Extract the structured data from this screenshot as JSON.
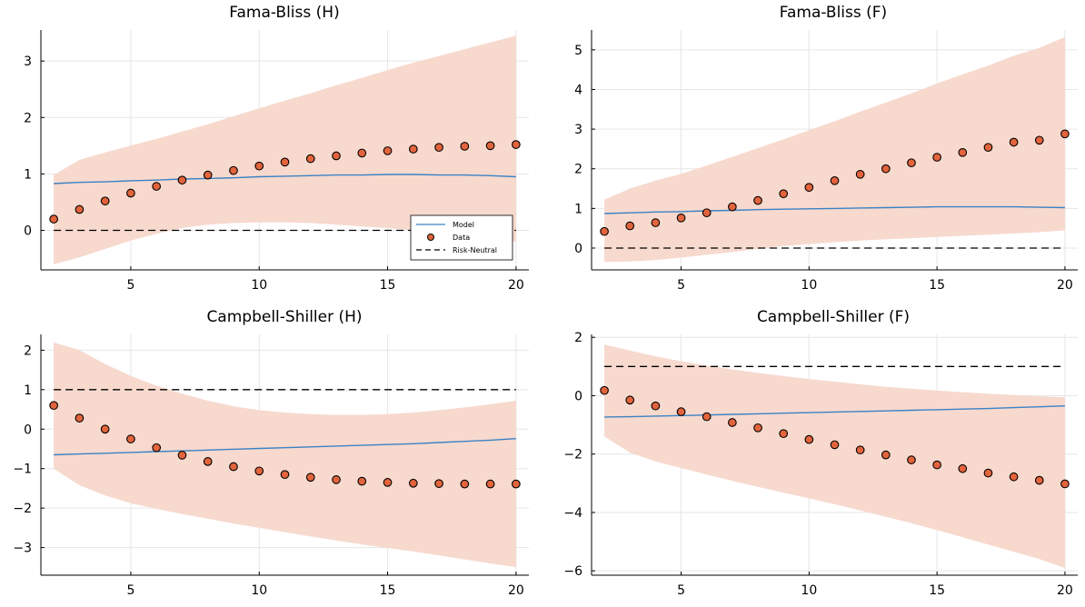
{
  "colors": {
    "band": "#f7d9ce",
    "model": "#3b82c4",
    "data_fill": "#e2643c",
    "data_edge": "#000000",
    "risk_neutral": "#000000",
    "grid": "#e6e6e6"
  },
  "legend": {
    "model_label": "Model",
    "data_label": "Data",
    "risk_neutral_label": "Risk-Neutral"
  },
  "chart_data": [
    {
      "type": "scatter",
      "title": "Fama-Bliss (H)",
      "xlabel": "",
      "ylabel": "",
      "xlim": [
        1.5,
        20.5
      ],
      "ylim": [
        -0.7,
        3.55
      ],
      "xticks": [
        5,
        10,
        15,
        20
      ],
      "yticks": [
        0,
        1,
        2,
        3
      ],
      "grid": true,
      "legend": "bottom-right",
      "x": [
        2,
        3,
        4,
        5,
        6,
        7,
        8,
        9,
        10,
        11,
        12,
        13,
        14,
        15,
        16,
        17,
        18,
        19,
        20
      ],
      "data": [
        0.2,
        0.37,
        0.52,
        0.66,
        0.78,
        0.89,
        0.98,
        1.06,
        1.14,
        1.21,
        1.27,
        1.32,
        1.37,
        1.41,
        1.44,
        1.47,
        1.49,
        1.5,
        1.52
      ],
      "model": [
        0.83,
        0.85,
        0.86,
        0.88,
        0.89,
        0.91,
        0.92,
        0.93,
        0.95,
        0.96,
        0.97,
        0.98,
        0.98,
        0.99,
        0.99,
        0.98,
        0.98,
        0.97,
        0.95
      ],
      "band_upper": [
        0.98,
        1.25,
        1.38,
        1.5,
        1.62,
        1.75,
        1.88,
        2.02,
        2.16,
        2.3,
        2.43,
        2.57,
        2.7,
        2.84,
        2.97,
        3.09,
        3.21,
        3.33,
        3.45
      ],
      "band_lower": [
        -0.6,
        -0.48,
        -0.33,
        -0.18,
        -0.06,
        0.04,
        0.1,
        0.13,
        0.14,
        0.14,
        0.13,
        0.1,
        0.07,
        0.04,
        0.0,
        -0.05,
        -0.1,
        -0.15,
        -0.2
      ],
      "risk_neutral": 0
    },
    {
      "type": "scatter",
      "title": "Fama-Bliss (F)",
      "xlabel": "",
      "ylabel": "",
      "xlim": [
        1.5,
        20.5
      ],
      "ylim": [
        -0.55,
        5.5
      ],
      "xticks": [
        5,
        10,
        15,
        20
      ],
      "yticks": [
        0,
        1,
        2,
        3,
        4,
        5
      ],
      "grid": true,
      "x": [
        2,
        3,
        4,
        5,
        6,
        7,
        8,
        9,
        10,
        11,
        12,
        13,
        14,
        15,
        16,
        17,
        18,
        19,
        20
      ],
      "data": [
        0.42,
        0.56,
        0.64,
        0.76,
        0.89,
        1.04,
        1.2,
        1.37,
        1.53,
        1.7,
        1.86,
        2.0,
        2.15,
        2.29,
        2.41,
        2.54,
        2.67,
        2.72,
        2.88
      ],
      "model": [
        0.87,
        0.89,
        0.91,
        0.92,
        0.94,
        0.95,
        0.97,
        0.98,
        0.99,
        1.0,
        1.01,
        1.02,
        1.03,
        1.04,
        1.04,
        1.04,
        1.04,
        1.03,
        1.02
      ],
      "band_upper": [
        1.22,
        1.5,
        1.7,
        1.87,
        2.08,
        2.3,
        2.52,
        2.74,
        2.97,
        3.2,
        3.44,
        3.67,
        3.9,
        4.15,
        4.38,
        4.6,
        4.85,
        5.05,
        5.32
      ],
      "band_lower": [
        -0.35,
        -0.34,
        -0.3,
        -0.24,
        -0.17,
        -0.1,
        -0.02,
        0.05,
        0.1,
        0.15,
        0.19,
        0.22,
        0.25,
        0.28,
        0.31,
        0.34,
        0.37,
        0.4,
        0.45
      ],
      "risk_neutral": 0
    },
    {
      "type": "scatter",
      "title": "Campbell-Shiller (H)",
      "xlabel": "",
      "ylabel": "",
      "xlim": [
        1.5,
        20.5
      ],
      "ylim": [
        -3.7,
        2.4
      ],
      "xticks": [
        5,
        10,
        15,
        20
      ],
      "yticks": [
        -3,
        -2,
        -1,
        0,
        1,
        2
      ],
      "grid": true,
      "x": [
        2,
        3,
        4,
        5,
        6,
        7,
        8,
        9,
        10,
        11,
        12,
        13,
        14,
        15,
        16,
        17,
        18,
        19,
        20
      ],
      "data": [
        0.6,
        0.28,
        0.0,
        -0.25,
        -0.47,
        -0.66,
        -0.82,
        -0.95,
        -1.06,
        -1.15,
        -1.22,
        -1.28,
        -1.32,
        -1.35,
        -1.37,
        -1.38,
        -1.39,
        -1.39,
        -1.39
      ],
      "model": [
        -0.65,
        -0.63,
        -0.61,
        -0.59,
        -0.57,
        -0.55,
        -0.53,
        -0.51,
        -0.49,
        -0.47,
        -0.45,
        -0.43,
        -0.41,
        -0.39,
        -0.37,
        -0.34,
        -0.31,
        -0.28,
        -0.24
      ],
      "band_upper": [
        2.2,
        2.0,
        1.65,
        1.35,
        1.1,
        0.9,
        0.72,
        0.58,
        0.48,
        0.42,
        0.38,
        0.36,
        0.36,
        0.38,
        0.42,
        0.48,
        0.55,
        0.63,
        0.72
      ],
      "band_lower": [
        -1.0,
        -1.42,
        -1.68,
        -1.88,
        -2.02,
        -2.15,
        -2.27,
        -2.39,
        -2.5,
        -2.61,
        -2.72,
        -2.82,
        -2.92,
        -3.01,
        -3.1,
        -3.2,
        -3.3,
        -3.4,
        -3.5
      ],
      "risk_neutral": 1
    },
    {
      "type": "scatter",
      "title": "Campbell-Shiller (F)",
      "xlabel": "",
      "ylabel": "",
      "xlim": [
        1.5,
        20.5
      ],
      "ylim": [
        -6.15,
        2.1
      ],
      "xticks": [
        5,
        10,
        15,
        20
      ],
      "yticks": [
        -6,
        -4,
        -2,
        0,
        2
      ],
      "grid": true,
      "x": [
        2,
        3,
        4,
        5,
        6,
        7,
        8,
        9,
        10,
        11,
        12,
        13,
        14,
        15,
        16,
        17,
        18,
        19,
        20
      ],
      "data": [
        0.18,
        -0.15,
        -0.35,
        -0.55,
        -0.72,
        -0.92,
        -1.1,
        -1.3,
        -1.5,
        -1.68,
        -1.86,
        -2.03,
        -2.2,
        -2.37,
        -2.5,
        -2.65,
        -2.78,
        -2.9,
        -3.02
      ],
      "model": [
        -0.73,
        -0.72,
        -0.7,
        -0.68,
        -0.66,
        -0.64,
        -0.62,
        -0.6,
        -0.58,
        -0.56,
        -0.54,
        -0.52,
        -0.5,
        -0.48,
        -0.46,
        -0.44,
        -0.41,
        -0.38,
        -0.35
      ],
      "band_upper": [
        1.75,
        1.55,
        1.35,
        1.18,
        1.03,
        0.9,
        0.78,
        0.67,
        0.57,
        0.48,
        0.39,
        0.3,
        0.24,
        0.18,
        0.12,
        0.07,
        0.02,
        -0.02,
        -0.05
      ],
      "band_lower": [
        -1.4,
        -1.95,
        -2.25,
        -2.48,
        -2.7,
        -2.92,
        -3.12,
        -3.32,
        -3.52,
        -3.72,
        -3.93,
        -4.15,
        -4.37,
        -4.6,
        -4.85,
        -5.1,
        -5.35,
        -5.6,
        -5.9
      ],
      "risk_neutral": 1
    }
  ]
}
